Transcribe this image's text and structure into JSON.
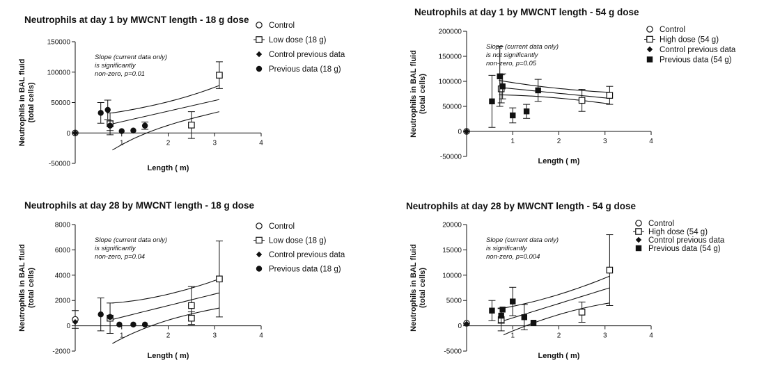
{
  "chart_data": [
    {
      "type": "scatter",
      "title": "Neutrophils at day 1 by MWCNT length - 18  g dose",
      "xlabel": "Length ( m)",
      "ylabel": [
        "Neutrophils in BAL fluid",
        "(total cells)"
      ],
      "xlim": [
        0,
        4
      ],
      "ylim": [
        -50000,
        150000
      ],
      "xticks": [
        "1",
        "2",
        "3",
        "4"
      ],
      "yticks": [
        "150000",
        "100000",
        "50000",
        "0",
        "-50000"
      ],
      "ytick_values": [
        150000,
        100000,
        50000,
        0,
        -50000
      ],
      "annotation": [
        "Slope (current data only)",
        "is significantly",
        "non-zero, p=0.01"
      ],
      "legend_position": "right",
      "legend": [
        {
          "label": "Control",
          "marker": "open-circle"
        },
        {
          "label": "Low dose (18  g)",
          "marker": "open-square-line"
        },
        {
          "label": "Control previous data",
          "marker": "diamond"
        },
        {
          "label": "Previous data (18  g)",
          "marker": "filled-circle"
        }
      ],
      "series": [
        {
          "name": "Control",
          "marker": "open-circle",
          "points": [
            {
              "x": 0,
              "y": 0
            }
          ]
        },
        {
          "name": "Low dose (18  g)",
          "marker": "open-square",
          "points": [
            {
              "x": 0.75,
              "y": 15000,
              "err": 18000
            },
            {
              "x": 2.5,
              "y": 13000,
              "err": 22000
            },
            {
              "x": 3.1,
              "y": 95000,
              "err": 22000
            }
          ]
        },
        {
          "name": "Control previous data",
          "marker": "diamond",
          "points": [
            {
              "x": 0,
              "y": 0
            }
          ]
        },
        {
          "name": "Previous data (18  g)",
          "marker": "filled-circle",
          "points": [
            {
              "x": 0.55,
              "y": 33000,
              "err": 17000
            },
            {
              "x": 0.7,
              "y": 38000,
              "err": 16000
            },
            {
              "x": 0.75,
              "y": 12000,
              "err": 8000
            },
            {
              "x": 1.0,
              "y": 3000
            },
            {
              "x": 1.25,
              "y": 4000
            },
            {
              "x": 1.5,
              "y": 12000,
              "err": 6000
            }
          ]
        }
      ],
      "fit": {
        "x": [
          0.8,
          3.1
        ],
        "mid": [
          15000,
          55000
        ],
        "upper": [
          33000,
          78000
        ],
        "lower": [
          -28000,
          35000
        ]
      }
    },
    {
      "type": "scatter",
      "title": "Neutrophils at day 1 by MWCNT length - 54  g dose",
      "xlabel": "Length ( m)",
      "ylabel": [
        "Neutrophils in BAL fluid",
        "(total cells)"
      ],
      "xlim": [
        0,
        4
      ],
      "ylim": [
        -50000,
        200000
      ],
      "xticks": [
        "1",
        "2",
        "3",
        "4"
      ],
      "yticks": [
        "200000",
        "150000",
        "100000",
        "50000",
        "0",
        "-50000"
      ],
      "ytick_values": [
        200000,
        150000,
        100000,
        50000,
        0,
        -50000
      ],
      "annotation": [
        "Slope (current data only)",
        "is not significantly",
        "non-zero, p=0.05"
      ],
      "legend_position": "right",
      "legend": [
        {
          "label": "Control",
          "marker": "open-circle"
        },
        {
          "label": "High dose (54  g)",
          "marker": "open-square-line"
        },
        {
          "label": "Control previous data",
          "marker": "diamond"
        },
        {
          "label": "Previous data (54  g)",
          "marker": "filled-square"
        }
      ],
      "series": [
        {
          "name": "Control",
          "marker": "open-circle",
          "points": [
            {
              "x": 0,
              "y": 0
            }
          ]
        },
        {
          "name": "High dose (54  g)",
          "marker": "open-square",
          "points": [
            {
              "x": 0.75,
              "y": 85000,
              "err": 28000
            },
            {
              "x": 2.5,
              "y": 62000,
              "err": 22000
            },
            {
              "x": 3.1,
              "y": 72000,
              "err": 18000
            }
          ]
        },
        {
          "name": "Control previous data",
          "marker": "diamond",
          "points": [
            {
              "x": 0,
              "y": 0
            }
          ]
        },
        {
          "name": "Previous data (54  g)",
          "marker": "filled-square",
          "points": [
            {
              "x": 0.55,
              "y": 60000,
              "err": 52000
            },
            {
              "x": 0.72,
              "y": 110000,
              "err": 60000
            },
            {
              "x": 0.78,
              "y": 90000,
              "err": 25000
            },
            {
              "x": 1.0,
              "y": 32000,
              "err": 15000
            },
            {
              "x": 1.3,
              "y": 40000,
              "err": 14000
            },
            {
              "x": 1.55,
              "y": 82000,
              "err": 22000
            }
          ]
        }
      ],
      "fit": {
        "x": [
          0.7,
          3.1
        ],
        "mid": [
          88000,
          66000
        ],
        "upper": [
          102000,
          78000
        ],
        "lower": [
          73000,
          55000
        ]
      }
    },
    {
      "type": "scatter",
      "title": "Neutrophils at day 28 by MWCNT length - 18  g dose",
      "xlabel": "Length ( m)",
      "ylabel": [
        "Neutrophils in BAL fluid",
        "(total cells)"
      ],
      "xlim": [
        0,
        4
      ],
      "ylim": [
        -2000,
        8000
      ],
      "xticks": [
        "1",
        "2",
        "3",
        "4"
      ],
      "yticks": [
        "8000",
        "6000",
        "4000",
        "2000",
        "0",
        "-2000"
      ],
      "ytick_values": [
        8000,
        6000,
        4000,
        2000,
        0,
        -2000
      ],
      "annotation": [
        "Slope (current data only)",
        "is significantly",
        "non-zero, p=0.04"
      ],
      "legend_position": "right",
      "legend": [
        {
          "label": "Control",
          "marker": "open-circle"
        },
        {
          "label": "Low dose (18  g)",
          "marker": "open-square-line"
        },
        {
          "label": "Control previous data",
          "marker": "diamond"
        },
        {
          "label": "Previous data (18  g)",
          "marker": "filled-circle"
        }
      ],
      "series": [
        {
          "name": "Control",
          "marker": "open-circle",
          "points": [
            {
              "x": 0,
              "y": 500,
              "err": 700
            }
          ]
        },
        {
          "name": "Low dose (18  g)",
          "marker": "open-square",
          "points": [
            {
              "x": 0.75,
              "y": 600,
              "err": 1200
            },
            {
              "x": 2.5,
              "y": 1600,
              "err": 1500
            },
            {
              "x": 2.5,
              "y": 600,
              "err": 500
            },
            {
              "x": 3.1,
              "y": 3700,
              "err": 3000
            }
          ]
        },
        {
          "name": "Control previous data",
          "marker": "diamond",
          "points": [
            {
              "x": 0,
              "y": 300
            }
          ]
        },
        {
          "name": "Previous data (18  g)",
          "marker": "filled-circle",
          "points": [
            {
              "x": 0.55,
              "y": 900,
              "err": 1300
            },
            {
              "x": 0.75,
              "y": 700
            },
            {
              "x": 0.95,
              "y": 100
            },
            {
              "x": 1.25,
              "y": 100
            },
            {
              "x": 1.5,
              "y": 100
            }
          ]
        }
      ],
      "fit": {
        "x": [
          0.8,
          3.1
        ],
        "mid": [
          500,
          2600
        ],
        "upper": [
          1800,
          3700
        ],
        "lower": [
          -1400,
          1400
        ]
      }
    },
    {
      "type": "scatter",
      "title": "Neutrophils at day 28 by MWCNT length - 54  g dose",
      "xlabel": "Length ( m)",
      "ylabel": [
        "Neutrophils in BAL fluid",
        "(total cells)"
      ],
      "xlim": [
        0,
        4
      ],
      "ylim": [
        -5000,
        20000
      ],
      "xticks": [
        "1",
        "2",
        "3",
        "4"
      ],
      "yticks": [
        "20000",
        "15000",
        "10000",
        "5000",
        "0",
        "-5000"
      ],
      "ytick_values": [
        20000,
        15000,
        10000,
        5000,
        0,
        -5000
      ],
      "annotation": [
        "Slope (current data only)",
        "is significantly",
        "non-zero, p=0.004"
      ],
      "legend_position": "top-right",
      "legend": [
        {
          "label": "Control",
          "marker": "open-circle"
        },
        {
          "label": "High dose (54  g)",
          "marker": "open-square-line"
        },
        {
          "label": "Control previous data",
          "marker": "diamond"
        },
        {
          "label": "Previous data (54  g)",
          "marker": "filled-square"
        }
      ],
      "series": [
        {
          "name": "Control",
          "marker": "open-circle",
          "points": [
            {
              "x": 0,
              "y": 500
            }
          ]
        },
        {
          "name": "High dose (54  g)",
          "marker": "open-square",
          "points": [
            {
              "x": 0.75,
              "y": 1200,
              "err": 2200
            },
            {
              "x": 2.5,
              "y": 2700,
              "err": 2000
            },
            {
              "x": 3.1,
              "y": 11000,
              "err": 7000
            }
          ]
        },
        {
          "name": "Control previous data",
          "marker": "diamond",
          "points": [
            {
              "x": 0,
              "y": 400
            }
          ]
        },
        {
          "name": "Previous data (54  g)",
          "marker": "filled-square",
          "points": [
            {
              "x": 0.55,
              "y": 3000,
              "err": 2000
            },
            {
              "x": 0.75,
              "y": 2000,
              "err": 1500
            },
            {
              "x": 0.78,
              "y": 3200
            },
            {
              "x": 1.0,
              "y": 4800,
              "err": 2800
            },
            {
              "x": 1.25,
              "y": 1700,
              "err": 2500
            },
            {
              "x": 1.45,
              "y": 600
            }
          ]
        }
      ],
      "fit": {
        "x": [
          0.8,
          3.1
        ],
        "mid": [
          1000,
          7500
        ],
        "upper": [
          3500,
          9800
        ],
        "lower": [
          -1800,
          4500
        ]
      }
    }
  ]
}
